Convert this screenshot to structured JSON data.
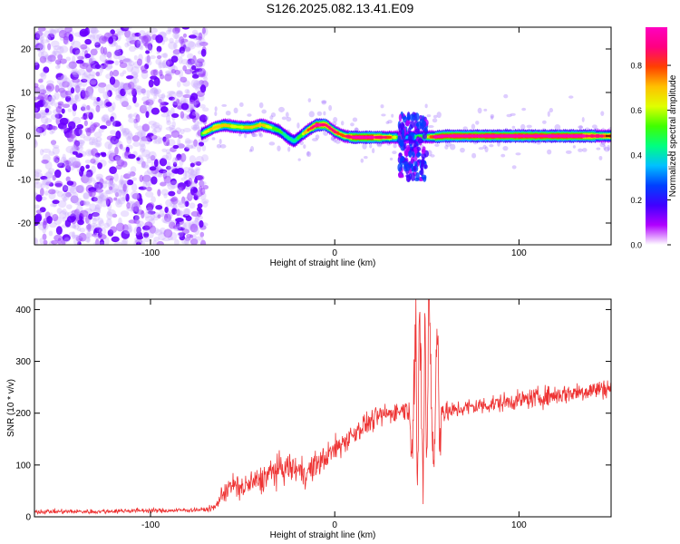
{
  "title": "S126.2025.082.13.41.E09",
  "chart_data": [
    {
      "type": "heatmap",
      "xlabel": "Height of straight line (km)",
      "ylabel": "Frequency (Hz)",
      "xlim": [
        -163,
        150
      ],
      "ylim": [
        -25,
        25
      ],
      "x_ticks": [
        "-100",
        "0",
        "100"
      ],
      "y_ticks": [
        "20",
        "10",
        "0",
        "-10",
        "-20"
      ],
      "grid": false,
      "colorbar": {
        "label": "Normalized spectral amplitude",
        "range": [
          0.0,
          0.97
        ],
        "ticks": [
          "0.0",
          "0.2",
          "0.4",
          "0.6",
          "0.8"
        ],
        "colormap": [
          "#ffffff",
          "#b000ff",
          "#4000ff",
          "#0040ff",
          "#00c0ff",
          "#00ff80",
          "#40ff00",
          "#e0ff00",
          "#ffc000",
          "#ff4000",
          "#ff0080",
          "#ff00c0"
        ]
      },
      "noise_region_x": [
        -163,
        -72
      ],
      "ridge": {
        "x": [
          -72,
          -65,
          -60,
          -55,
          -50,
          -45,
          -40,
          -35,
          -30,
          -25,
          -22,
          -18,
          -14,
          -10,
          -5,
          0,
          5,
          10,
          15,
          20,
          25,
          30,
          35,
          40,
          45,
          50,
          55,
          60,
          70,
          80,
          90,
          100,
          110,
          120,
          130,
          140,
          150
        ],
        "y": [
          0.5,
          2.0,
          2.5,
          2.2,
          2.0,
          2.0,
          2.6,
          2.0,
          1.2,
          -0.5,
          -1.2,
          0.2,
          1.5,
          2.5,
          2.6,
          1.0,
          0.0,
          -0.3,
          -0.3,
          -0.3,
          -0.3,
          -0.3,
          -0.3,
          -0.3,
          -0.2,
          -0.2,
          -0.2,
          0.0,
          0.0,
          0.0,
          0.0,
          0.0,
          0.0,
          0.0,
          0.0,
          0.0,
          0.0
        ],
        "amp": [
          0.55,
          0.75,
          0.7,
          0.65,
          0.65,
          0.7,
          0.72,
          0.6,
          0.5,
          0.45,
          0.45,
          0.55,
          0.8,
          0.95,
          0.9,
          0.85,
          0.8,
          0.95,
          0.97,
          0.95,
          0.9,
          0.8,
          0.5,
          0.3,
          0.5,
          0.6,
          0.95,
          0.97,
          0.97,
          0.96,
          0.96,
          0.97,
          0.95,
          0.96,
          0.97,
          0.9,
          0.8
        ]
      },
      "disturbance": {
        "x": [
          35,
          50
        ],
        "y": [
          -10,
          5
        ]
      }
    },
    {
      "type": "line",
      "xlabel": "Height of straight line (km)",
      "ylabel": "SNR (10 * v/v)",
      "xlim": [
        -163,
        150
      ],
      "ylim": [
        0,
        420
      ],
      "x_ticks": [
        "-100",
        "0",
        "100"
      ],
      "y_ticks": [
        "400",
        "300",
        "200",
        "100",
        "0"
      ],
      "grid": false,
      "color": "#ee3333",
      "series": [
        {
          "x": [
            -163,
            -150,
            -130,
            -110,
            -90,
            -70,
            -65,
            -60,
            -55,
            -50,
            -45,
            -40,
            -35,
            -30,
            -25,
            -20,
            -15,
            -10,
            -5,
            0,
            5,
            10,
            15,
            20,
            25,
            30,
            35,
            40,
            42,
            44,
            45,
            46,
            47,
            48,
            49,
            50,
            51,
            52,
            53,
            54,
            55,
            56,
            57,
            58,
            60,
            65,
            70,
            80,
            90,
            100,
            110,
            120,
            130,
            140,
            150
          ],
          "values": [
            10,
            10,
            10,
            12,
            12,
            14,
            18,
            50,
            60,
            55,
            65,
            70,
            85,
            90,
            95,
            90,
            85,
            100,
            115,
            130,
            145,
            160,
            175,
            185,
            195,
            200,
            205,
            210,
            130,
            380,
            30,
            400,
            250,
            20,
            390,
            80,
            420,
            330,
            150,
            60,
            300,
            350,
            120,
            210,
            200,
            205,
            210,
            215,
            220,
            225,
            230,
            235,
            240,
            245,
            250
          ],
          "noise": [
            4,
            4,
            4,
            4,
            4,
            4,
            6,
            20,
            22,
            22,
            24,
            24,
            26,
            26,
            26,
            24,
            24,
            24,
            24,
            22,
            22,
            22,
            20,
            20,
            18,
            18,
            18,
            18,
            40,
            40,
            40,
            40,
            40,
            40,
            40,
            40,
            40,
            40,
            40,
            40,
            40,
            40,
            40,
            30,
            18,
            16,
            16,
            16,
            16,
            16,
            18,
            18,
            18,
            18,
            18
          ]
        }
      ]
    }
  ]
}
